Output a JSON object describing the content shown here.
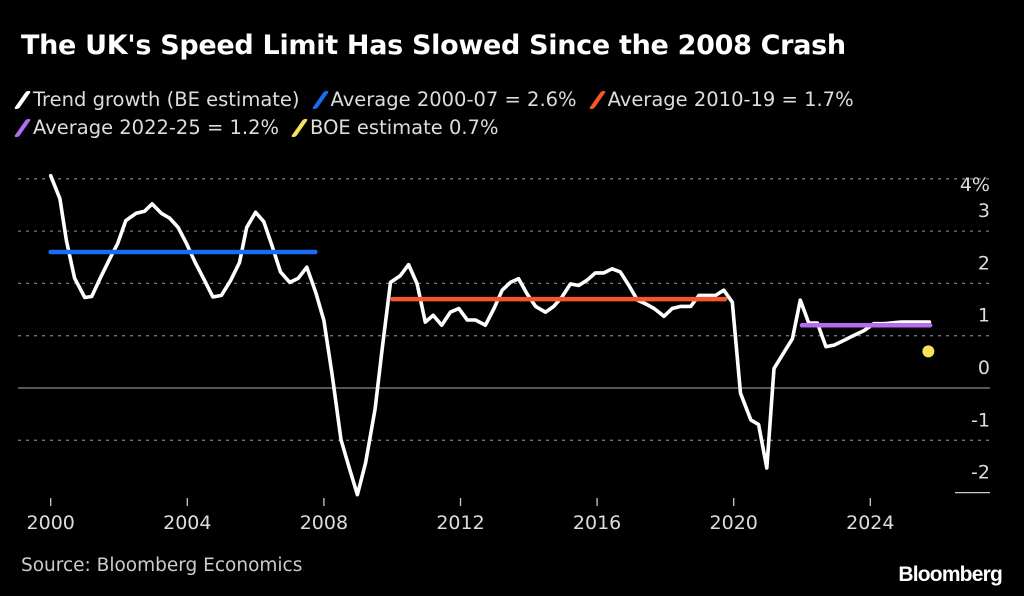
{
  "chart_data": {
    "type": "line",
    "title": "The UK's Speed Limit Has Slowed Since the 2008 Crash",
    "xlabel": "",
    "ylabel": "",
    "xlim": [
      2000,
      2026
    ],
    "ylim": [
      -2,
      4
    ],
    "x_ticks": [
      "2000",
      "2004",
      "2008",
      "2012",
      "2016",
      "2020",
      "2024"
    ],
    "y_ticks": [
      "4%",
      "3",
      "2",
      "1",
      "0",
      "-1",
      "-2"
    ],
    "grid": true,
    "legend_position": "top-left",
    "series": [
      {
        "name": "Trend growth (BE estimate)",
        "color": "#ffffff",
        "type": "line",
        "points": [
          [
            2000.0,
            4.06
          ],
          [
            2000.27,
            3.62
          ],
          [
            2000.46,
            2.82
          ],
          [
            2000.7,
            2.1
          ],
          [
            2001.0,
            1.73
          ],
          [
            2001.2,
            1.75
          ],
          [
            2001.45,
            2.1
          ],
          [
            2001.75,
            2.5
          ],
          [
            2001.96,
            2.76
          ],
          [
            2002.2,
            3.2
          ],
          [
            2002.5,
            3.34
          ],
          [
            2002.75,
            3.38
          ],
          [
            2002.97,
            3.52
          ],
          [
            2003.24,
            3.34
          ],
          [
            2003.48,
            3.25
          ],
          [
            2003.73,
            3.07
          ],
          [
            2003.98,
            2.76
          ],
          [
            2004.23,
            2.4
          ],
          [
            2004.47,
            2.1
          ],
          [
            2004.75,
            1.74
          ],
          [
            2005.0,
            1.77
          ],
          [
            2005.27,
            2.06
          ],
          [
            2005.53,
            2.4
          ],
          [
            2005.74,
            3.07
          ],
          [
            2006.0,
            3.36
          ],
          [
            2006.24,
            3.18
          ],
          [
            2006.48,
            2.72
          ],
          [
            2006.73,
            2.22
          ],
          [
            2007.0,
            2.02
          ],
          [
            2007.25,
            2.1
          ],
          [
            2007.5,
            2.31
          ],
          [
            2007.76,
            1.83
          ],
          [
            2008.0,
            1.29
          ],
          [
            2008.25,
            0.22
          ],
          [
            2008.5,
            -0.99
          ],
          [
            2008.73,
            -1.5
          ],
          [
            2008.98,
            -2.04
          ],
          [
            2009.22,
            -1.43
          ],
          [
            2009.5,
            -0.4
          ],
          [
            2009.7,
            0.72
          ],
          [
            2009.95,
            2.02
          ],
          [
            2010.24,
            2.15
          ],
          [
            2010.48,
            2.36
          ],
          [
            2010.73,
            1.99
          ],
          [
            2010.97,
            1.26
          ],
          [
            2011.2,
            1.39
          ],
          [
            2011.45,
            1.2
          ],
          [
            2011.7,
            1.45
          ],
          [
            2011.95,
            1.52
          ],
          [
            2012.2,
            1.3
          ],
          [
            2012.44,
            1.3
          ],
          [
            2012.73,
            1.2
          ],
          [
            2012.98,
            1.52
          ],
          [
            2013.22,
            1.87
          ],
          [
            2013.46,
            2.02
          ],
          [
            2013.7,
            2.09
          ],
          [
            2013.95,
            1.8
          ],
          [
            2014.2,
            1.56
          ],
          [
            2014.49,
            1.45
          ],
          [
            2014.73,
            1.56
          ],
          [
            2014.98,
            1.75
          ],
          [
            2015.22,
            1.99
          ],
          [
            2015.46,
            1.96
          ],
          [
            2015.7,
            2.06
          ],
          [
            2015.95,
            2.2
          ],
          [
            2016.2,
            2.2
          ],
          [
            2016.44,
            2.28
          ],
          [
            2016.68,
            2.22
          ],
          [
            2016.93,
            1.96
          ],
          [
            2017.18,
            1.68
          ],
          [
            2017.42,
            1.61
          ],
          [
            2017.67,
            1.52
          ],
          [
            2017.96,
            1.37
          ],
          [
            2018.2,
            1.52
          ],
          [
            2018.45,
            1.56
          ],
          [
            2018.74,
            1.56
          ],
          [
            2018.98,
            1.77
          ],
          [
            2019.23,
            1.77
          ],
          [
            2019.47,
            1.77
          ],
          [
            2019.71,
            1.87
          ],
          [
            2019.96,
            1.64
          ],
          [
            2020.2,
            -0.1
          ],
          [
            2020.5,
            -0.61
          ],
          [
            2020.73,
            -0.7
          ],
          [
            2020.97,
            -1.53
          ],
          [
            2021.18,
            0.37
          ],
          [
            2021.48,
            0.69
          ],
          [
            2021.72,
            0.94
          ],
          [
            2021.95,
            1.68
          ],
          [
            2022.2,
            1.24
          ],
          [
            2022.45,
            1.24
          ],
          [
            2022.7,
            0.79
          ],
          [
            2022.94,
            0.82
          ],
          [
            2023.23,
            0.91
          ],
          [
            2023.53,
            1.01
          ],
          [
            2023.82,
            1.1
          ],
          [
            2024.1,
            1.23
          ],
          [
            2024.4,
            1.23
          ],
          [
            2024.9,
            1.26
          ],
          [
            2025.73,
            1.26
          ]
        ]
      },
      {
        "name": "Average 2000-07 = 2.6%",
        "color": "#1a6cf0",
        "type": "hline",
        "x": [
          2000.0,
          2007.75
        ],
        "value": 2.6
      },
      {
        "name": "Average 2010-19 = 1.7%",
        "color": "#f5562a",
        "type": "hline",
        "x": [
          2010.0,
          2019.75
        ],
        "value": 1.7
      },
      {
        "name": "Average 2022-25 = 1.2%",
        "color": "#b46cf0",
        "type": "hline",
        "x": [
          2022.0,
          2025.75
        ],
        "value": 1.2
      },
      {
        "name": "BOE estimate 0.7%",
        "color": "#f7e35a",
        "type": "point",
        "x": 2025.7,
        "value": 0.7
      }
    ],
    "source": "Source: Bloomberg Economics"
  },
  "logo": "Bloomberg"
}
